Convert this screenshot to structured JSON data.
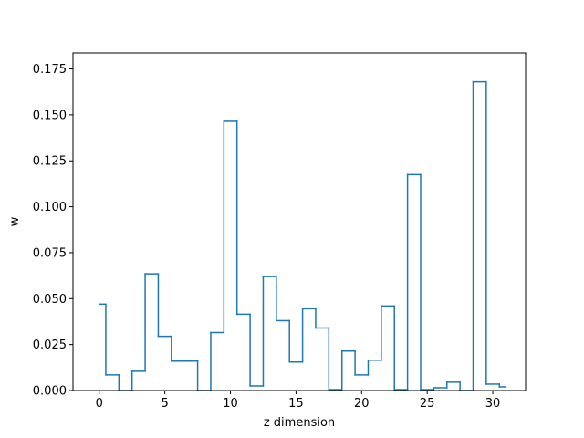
{
  "chart_data": {
    "type": "line",
    "drawstyle": "steps-mid",
    "xlabel": "z dimension",
    "ylabel": "w",
    "xlim": [
      -2.0,
      32.5
    ],
    "ylim": [
      0,
      0.1837
    ],
    "xticks": [
      0,
      5,
      10,
      15,
      20,
      25,
      30
    ],
    "yticks": [
      0.0,
      0.025,
      0.05,
      0.075,
      0.1,
      0.125,
      0.15,
      0.175
    ],
    "xtick_labels": [
      "0",
      "5",
      "10",
      "15",
      "20",
      "25",
      "30"
    ],
    "ytick_labels": [
      "0.000",
      "0.025",
      "0.050",
      "0.075",
      "0.100",
      "0.125",
      "0.150",
      "0.175"
    ],
    "line_color": "#1f77b4",
    "grid": false,
    "legend": false,
    "x": [
      0,
      1,
      2,
      3,
      4,
      5,
      6,
      7,
      8,
      9,
      10,
      11,
      12,
      13,
      14,
      15,
      16,
      17,
      18,
      19,
      20,
      21,
      22,
      23,
      24,
      25,
      26,
      27,
      28,
      29,
      30,
      31
    ],
    "values": [
      0.047,
      0.0085,
      0.0,
      0.0105,
      0.0635,
      0.0295,
      0.016,
      0.016,
      0.0,
      0.0315,
      0.1465,
      0.0415,
      0.0025,
      0.062,
      0.038,
      0.0155,
      0.0445,
      0.034,
      0.0005,
      0.0215,
      0.0085,
      0.0165,
      0.046,
      0.0005,
      0.1175,
      0.0005,
      0.0015,
      0.0045,
      0.0,
      0.168,
      0.0035,
      0.002
    ]
  }
}
